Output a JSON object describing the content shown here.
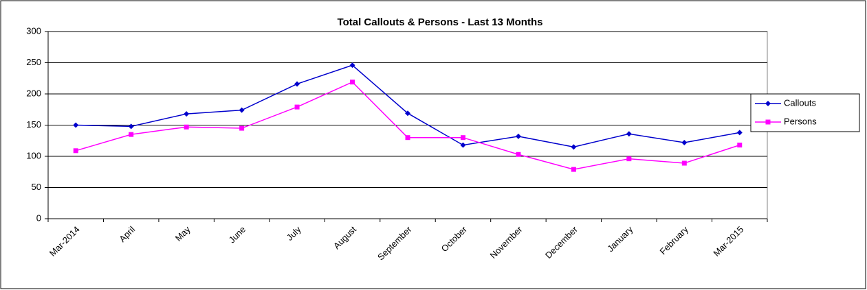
{
  "chart_data": {
    "type": "line",
    "title": "Total Callouts & Persons - Last 13 Months",
    "categories": [
      "Mar-2014",
      "April",
      "May",
      "June",
      "July",
      "August",
      "September",
      "October",
      "November",
      "December",
      "January",
      "February",
      "Mar-2015"
    ],
    "series": [
      {
        "name": "Callouts",
        "color": "#0000cc",
        "marker": "diamond",
        "values": [
          150,
          148,
          168,
          174,
          216,
          246,
          169,
          118,
          132,
          115,
          136,
          122,
          138
        ]
      },
      {
        "name": "Persons",
        "color": "#ff00ff",
        "marker": "square",
        "values": [
          109,
          135,
          147,
          145,
          179,
          219,
          130,
          130,
          103,
          79,
          96,
          89,
          118
        ]
      }
    ],
    "ylim": [
      0,
      300
    ],
    "yticks": [
      0,
      50,
      100,
      150,
      200,
      250,
      300
    ],
    "grid": true,
    "legend": "right"
  }
}
